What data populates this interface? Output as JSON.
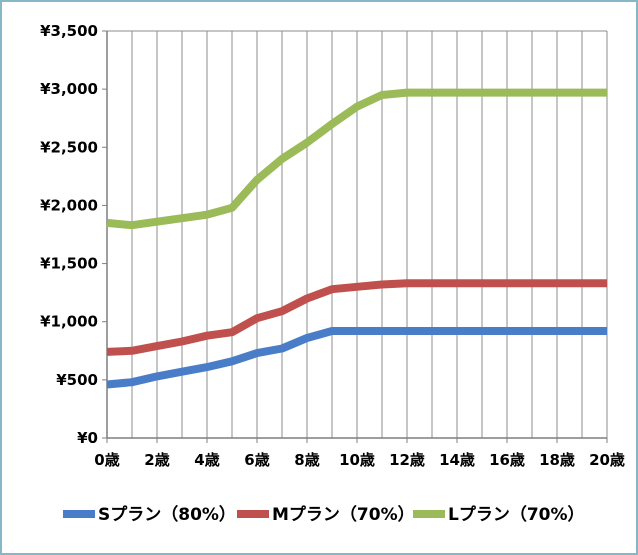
{
  "chart_data": {
    "type": "line",
    "x": [
      0,
      1,
      2,
      3,
      4,
      5,
      6,
      7,
      8,
      9,
      10,
      11,
      12,
      13,
      14,
      15,
      16,
      17,
      18,
      19,
      20
    ],
    "x_tick_labels": [
      "0歳",
      "2歳",
      "4歳",
      "6歳",
      "8歳",
      "10歳",
      "12歳",
      "14歳",
      "16歳",
      "18歳",
      "20歳"
    ],
    "y_tick_labels": [
      "¥0",
      "¥500",
      "¥1,000",
      "¥1,500",
      "¥2,000",
      "¥2,500",
      "¥3,000",
      "¥3,500"
    ],
    "ylim": [
      0,
      3500
    ],
    "xlim": [
      0,
      20
    ],
    "grid": "vertical",
    "legend_position": "bottom",
    "series": [
      {
        "name": "Sプラン（80%）",
        "color": "#4a7dc8",
        "values": [
          460,
          480,
          530,
          570,
          610,
          660,
          730,
          770,
          860,
          920,
          920,
          920,
          920,
          920,
          920,
          920,
          920,
          920,
          920,
          920,
          920
        ]
      },
      {
        "name": "Mプラン（70%）",
        "color": "#c0504d",
        "values": [
          740,
          750,
          790,
          830,
          880,
          910,
          1030,
          1090,
          1200,
          1280,
          1300,
          1320,
          1330,
          1330,
          1330,
          1330,
          1330,
          1330,
          1330,
          1330,
          1330
        ]
      },
      {
        "name": "Lプラン（70%）",
        "color": "#9bbb59",
        "values": [
          1850,
          1830,
          1860,
          1890,
          1920,
          1980,
          2220,
          2400,
          2540,
          2700,
          2850,
          2950,
          2970,
          2970,
          2970,
          2970,
          2970,
          2970,
          2970,
          2970,
          2970
        ]
      }
    ]
  }
}
